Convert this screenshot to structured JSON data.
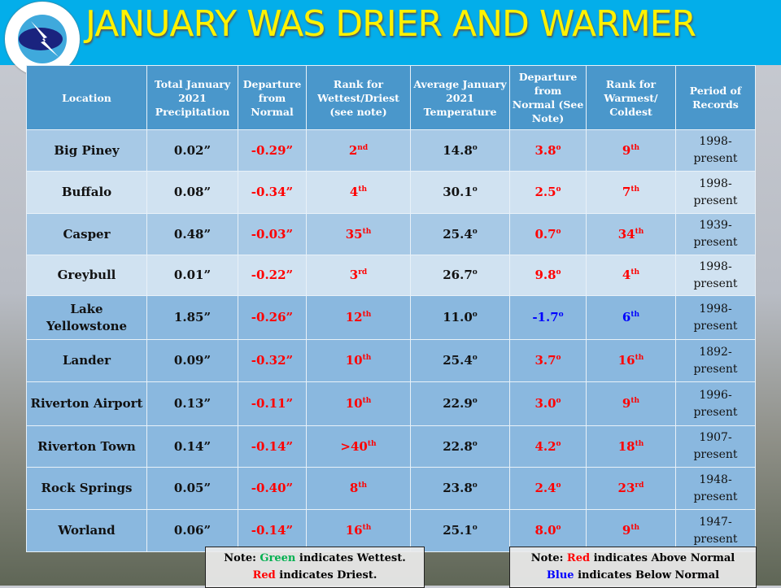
{
  "title": "JANUARY WAS DRIER AND WARMER",
  "logo_text": "NATIONAL WEATHER SERVICE",
  "colors": {
    "banner": "#03aeea",
    "title": "#fff200",
    "header": "#4a97cb",
    "above": "#ff0000",
    "below": "#0000ff",
    "wettest": "#00b050"
  },
  "table": {
    "headers": [
      "Location",
      "Total January 2021 Precipitation",
      "Departure from Normal",
      "Rank for Wettest/Driest (see note)",
      "Average January 2021 Temperature",
      "Departure from Normal (See Note)",
      "Rank for Warmest/ Coldest",
      "Period of Records"
    ],
    "rows": [
      {
        "location": "Big Piney",
        "precip": "0.02”",
        "pdep": "-0.29”",
        "prank": "2",
        "prank_sup": "nd",
        "temp": "14.8",
        "tdep": "3.8",
        "tdep_color": "red",
        "trank": "9",
        "trank_sup": "th",
        "trank_color": "red",
        "period": "1998- present"
      },
      {
        "location": "Buffalo",
        "precip": "0.08”",
        "pdep": "-0.34”",
        "prank": "4",
        "prank_sup": "th",
        "temp": "30.1",
        "tdep": "2.5",
        "tdep_color": "red",
        "trank": "7",
        "trank_sup": "th",
        "trank_color": "red",
        "period": "1998- present"
      },
      {
        "location": "Casper",
        "precip": "0.48”",
        "pdep": "-0.03”",
        "prank": "35",
        "prank_sup": "th",
        "temp": "25.4",
        "tdep": "0.7",
        "tdep_color": "red",
        "trank": "34",
        "trank_sup": "th",
        "trank_color": "red",
        "period": "1939- present"
      },
      {
        "location": "Greybull",
        "precip": "0.01”",
        "pdep": "-0.22”",
        "prank": "3",
        "prank_sup": "rd",
        "temp": "26.7",
        "tdep": "9.8",
        "tdep_color": "red",
        "trank": "4",
        "trank_sup": "th",
        "trank_color": "red",
        "period": "1998- present"
      },
      {
        "location": "Lake Yellowstone",
        "precip": "1.85”",
        "pdep": "-0.26”",
        "prank": "12",
        "prank_sup": "th",
        "temp": "11.0",
        "tdep": "-1.7",
        "tdep_color": "blue",
        "trank": "6",
        "trank_sup": "th",
        "trank_color": "blue",
        "period": "1998- present"
      },
      {
        "location": "Lander",
        "precip": "0.09”",
        "pdep": "-0.32”",
        "prank": "10",
        "prank_sup": "th",
        "temp": "25.4",
        "tdep": "3.7",
        "tdep_color": "red",
        "trank": "16",
        "trank_sup": "th",
        "trank_color": "red",
        "period": "1892- present"
      },
      {
        "location": "Riverton Airport",
        "precip": "0.13”",
        "pdep": "-0.11”",
        "prank": "10",
        "prank_sup": "th",
        "temp": "22.9",
        "tdep": "3.0",
        "tdep_color": "red",
        "trank": "9",
        "trank_sup": "th",
        "trank_color": "red",
        "period": "1996- present"
      },
      {
        "location": "Riverton Town",
        "precip": "0.14”",
        "pdep": "-0.14”",
        "prank": ">40",
        "prank_sup": "th",
        "temp": "22.8",
        "tdep": "4.2",
        "tdep_color": "red",
        "trank": "18",
        "trank_sup": "th",
        "trank_color": "red",
        "period": "1907- present"
      },
      {
        "location": "Rock Springs",
        "precip": "0.05”",
        "pdep": "-0.40”",
        "prank": "8",
        "prank_sup": "th",
        "temp": "23.8",
        "tdep": "2.4",
        "tdep_color": "red",
        "trank": "23",
        "trank_sup": "rd",
        "trank_color": "red",
        "period": "1948- present"
      },
      {
        "location": "Worland",
        "precip": "0.06”",
        "pdep": "-0.14”",
        "prank": "16",
        "prank_sup": "th",
        "temp": "25.1",
        "tdep": "8.0",
        "tdep_color": "red",
        "trank": "9",
        "trank_sup": "th",
        "trank_color": "red",
        "period": "1947- present"
      }
    ],
    "degree": "o"
  },
  "note_left": {
    "prefix": "Note: ",
    "green": "Green",
    "line1": " indicates Wettest.",
    "red": "Red",
    "line2": " indicates Driest."
  },
  "note_right": {
    "prefix": "Note: ",
    "red": "Red",
    "line1": " indicates Above Normal",
    "blue": "Blue",
    "line2": " indicates Below Normal"
  }
}
